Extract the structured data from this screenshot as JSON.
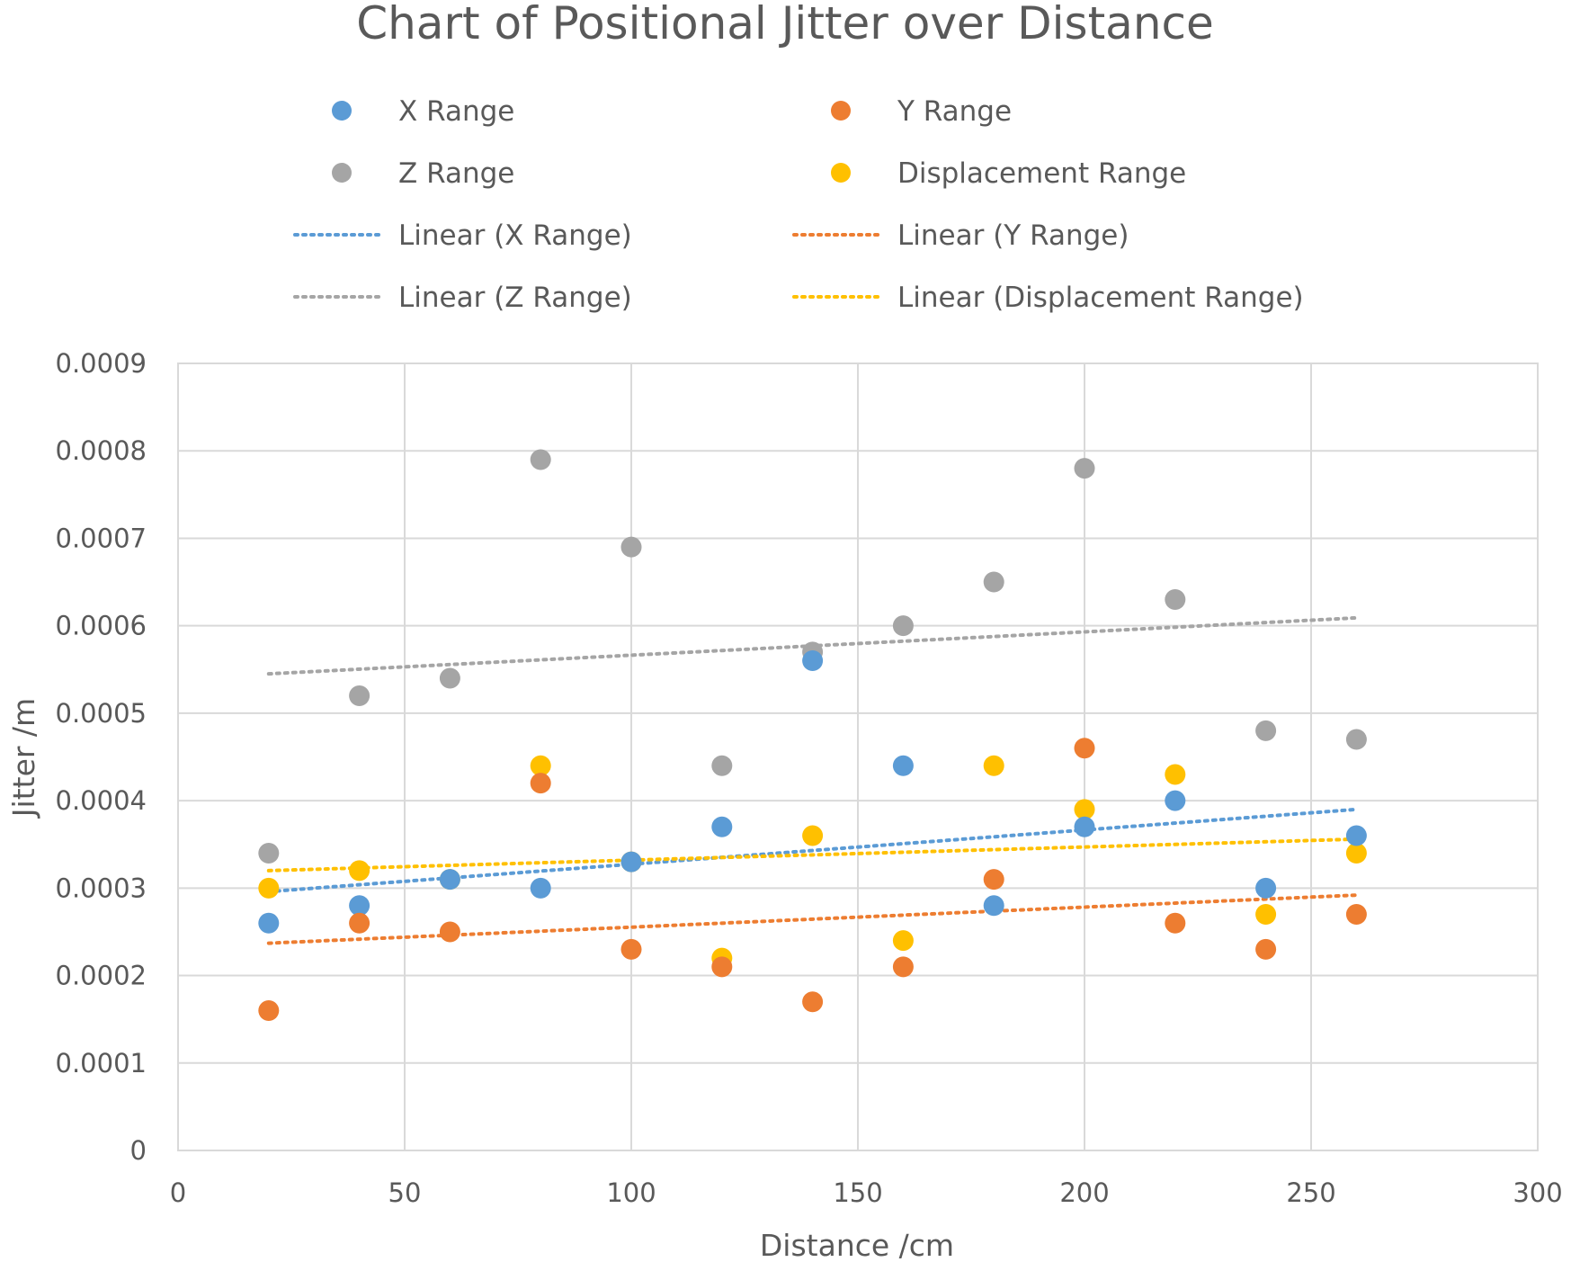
{
  "chart_data": {
    "type": "scatter",
    "title": "Chart of Positional Jitter over Distance",
    "xlabel": "Distance /cm",
    "ylabel": "Jitter /m",
    "xlim": [
      0,
      300
    ],
    "ylim": [
      0,
      0.0009
    ],
    "x_ticks": [
      0,
      50,
      100,
      150,
      200,
      250,
      300
    ],
    "x_tick_labels": [
      "0",
      "50",
      "100",
      "150",
      "200",
      "250",
      "300"
    ],
    "y_ticks": [
      0,
      0.0001,
      0.0002,
      0.0003,
      0.0004,
      0.0005,
      0.0006,
      0.0007,
      0.0008,
      0.0009
    ],
    "y_tick_labels": [
      "0",
      "0.0001",
      "0.0002",
      "0.0003",
      "0.0004",
      "0.0005",
      "0.0006",
      "0.0007",
      "0.0008",
      "0.0009"
    ],
    "grid": true,
    "legend_position": "top",
    "x": [
      20,
      40,
      60,
      80,
      100,
      120,
      140,
      160,
      180,
      200,
      220,
      240,
      260
    ],
    "series": [
      {
        "name": "X Range",
        "color": "#5b9bd5",
        "values": [
          0.00026,
          0.00028,
          0.00031,
          0.0003,
          0.00033,
          0.00037,
          0.00056,
          0.00044,
          0.00028,
          0.00037,
          0.0004,
          0.0003,
          0.00036
        ],
        "trend_name": "Linear (X Range)",
        "trend": [
          0.000296,
          0.00039
        ]
      },
      {
        "name": "Y Range",
        "color": "#ed7d31",
        "values": [
          0.00016,
          0.00026,
          0.00025,
          0.00042,
          0.00023,
          0.00021,
          0.00017,
          0.00021,
          0.00031,
          0.00046,
          0.00026,
          0.00023,
          0.00027
        ],
        "trend_name": "Linear (Y Range)",
        "trend": [
          0.000237,
          0.000292
        ]
      },
      {
        "name": "Z Range",
        "color": "#a5a5a5",
        "values": [
          0.00034,
          0.00052,
          0.00054,
          0.00079,
          0.00069,
          0.00044,
          0.00057,
          0.0006,
          0.00065,
          0.00078,
          0.00063,
          0.00048,
          0.00047
        ],
        "trend_name": "Linear (Z Range)",
        "trend": [
          0.000545,
          0.000609
        ]
      },
      {
        "name": "Displacement Range",
        "color": "#ffc000",
        "values": [
          0.0003,
          0.00032,
          0.00031,
          0.00044,
          0.00033,
          0.00022,
          0.00036,
          0.00024,
          0.00044,
          0.00039,
          0.00043,
          0.00027,
          0.00034
        ],
        "trend_name": "Linear (Displacement Range)",
        "trend": [
          0.00032,
          0.000356
        ]
      }
    ]
  }
}
